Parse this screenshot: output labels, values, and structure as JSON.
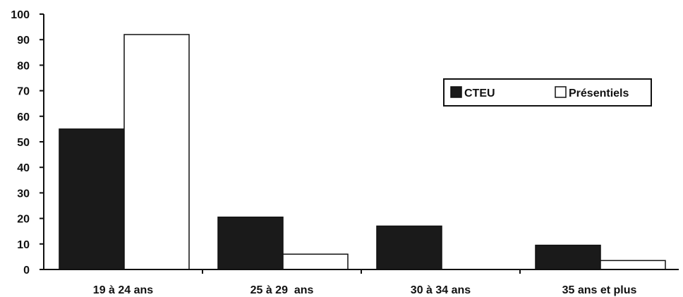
{
  "chart_data": {
    "type": "bar",
    "categories": [
      "19 à 24 ans",
      "25 à 29  ans",
      "30 à 34 ans",
      "35 ans et plus"
    ],
    "series": [
      {
        "name": "CTEU",
        "values": [
          55,
          20.5,
          17,
          9.5
        ],
        "color": "#1a1a1a"
      },
      {
        "name": "Présentiels",
        "values": [
          92,
          6,
          0,
          3.5
        ],
        "color": "#ffffff"
      }
    ],
    "ylim": [
      0,
      100
    ],
    "yticks": [
      "0",
      "10",
      "20",
      "30",
      "40",
      "50",
      "60",
      "70",
      "80",
      "90",
      "100"
    ],
    "legend_position": "top-right",
    "grid": false
  }
}
